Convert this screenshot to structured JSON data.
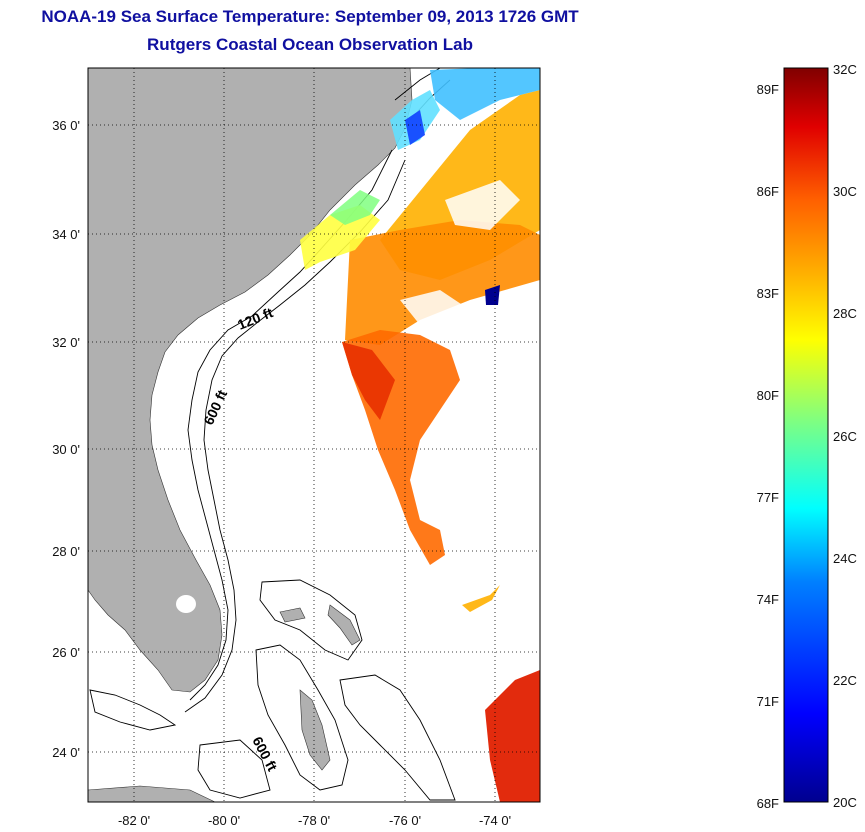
{
  "title": {
    "line1": "NOAA-19 Sea Surface Temperature:  September 09, 2013 1726 GMT",
    "line2": "Rutgers Coastal Ocean Observation Lab"
  },
  "map": {
    "x_tick_labels": [
      "-82 0'",
      "-80 0'",
      "-78 0'",
      "-76 0'",
      "-74 0'"
    ],
    "y_tick_labels": [
      "36 0'",
      "34 0'",
      "32 0'",
      "30 0'",
      "28 0'",
      "26 0'",
      "24 0'"
    ],
    "contour_labels": [
      "120 ft",
      "600 ft",
      "600 ft"
    ],
    "land_color": "#b0b0b0",
    "ocean_color": "#ffffff",
    "grid": "dotted"
  },
  "colorbar": {
    "fahrenheit_labels": [
      "89F",
      "86F",
      "83F",
      "80F",
      "77F",
      "74F",
      "71F",
      "68F"
    ],
    "celsius_labels": [
      "32C",
      "30C",
      "28C",
      "26C",
      "24C",
      "22C",
      "20C"
    ],
    "range_c": [
      20,
      32
    ],
    "colormap": [
      "#00008f",
      "#0000ff",
      "#0080ff",
      "#00ffff",
      "#80ff80",
      "#ffff00",
      "#ff8000",
      "#ff0000",
      "#800000"
    ]
  }
}
